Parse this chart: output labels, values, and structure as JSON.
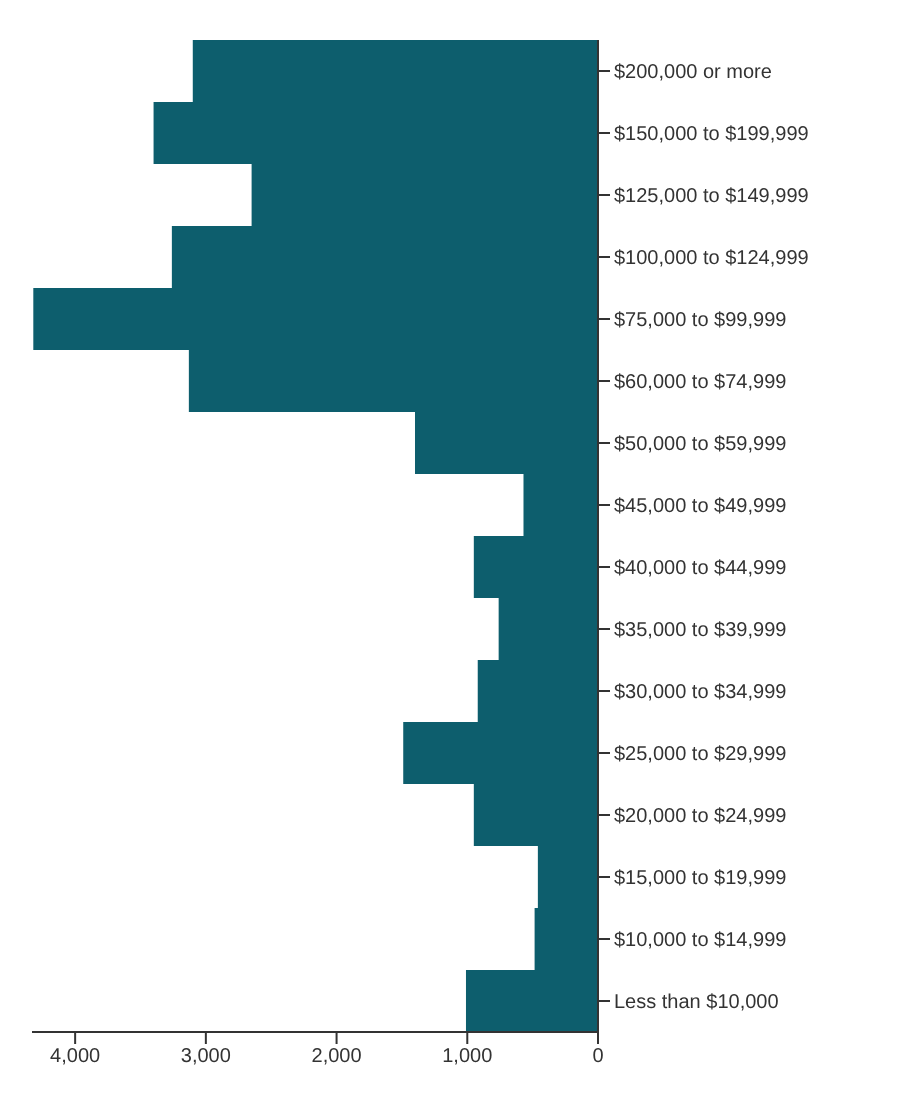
{
  "chart_data": {
    "type": "bar",
    "orientation": "horizontal",
    "categories": [
      "$200,000 or more",
      "$150,000 to $199,999",
      "$125,000 to $149,999",
      "$100,000 to $124,999",
      "$75,000 to $99,999",
      "$60,000 to $74,999",
      "$50,000 to $59,999",
      "$45,000 to $49,999",
      "$40,000 to $44,999",
      "$35,000 to $39,999",
      "$30,000 to $34,999",
      "$25,000 to $29,999",
      "$20,000 to $24,999",
      "$15,000 to $19,999",
      "$10,000 to $14,999",
      "Less than $10,000"
    ],
    "values": [
      3100,
      3400,
      2650,
      3260,
      4320,
      3130,
      1400,
      570,
      950,
      760,
      920,
      1490,
      950,
      460,
      485,
      1010
    ],
    "color": "#0d5e6d",
    "xlim": [
      4330,
      0
    ],
    "xticks": [
      {
        "value": 4000,
        "label": "4,000"
      },
      {
        "value": 3000,
        "label": "3,000"
      },
      {
        "value": 2000,
        "label": "2,000"
      },
      {
        "value": 1000,
        "label": "1,000"
      },
      0
    ],
    "grid": false
  }
}
